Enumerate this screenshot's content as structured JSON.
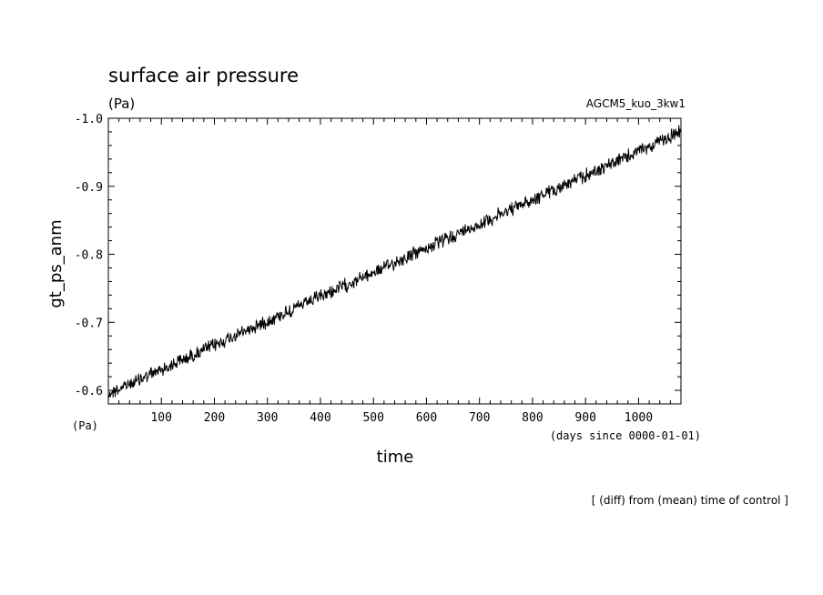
{
  "chart_data": {
    "type": "line",
    "title": "surface air pressure",
    "units_label": "(Pa)",
    "dataset_label": "AGCM5_kuo_3kw1",
    "ylabel": "gt_ps_anm",
    "xlabel": "time",
    "x_units_label": "(days since 0000-01-01)",
    "x_axis_units_corner": "(Pa)",
    "footer_note": "[ (diff) from (mean) time of control ]",
    "xlim": [
      0,
      1080
    ],
    "ylim": [
      -0.58,
      -1.0
    ],
    "y_axis_inverted": true,
    "x_ticks": [
      "100",
      "200",
      "300",
      "400",
      "500",
      "600",
      "700",
      "800",
      "900",
      "1000"
    ],
    "y_ticks": [
      "-1.0",
      "-0.9",
      "-0.8",
      "-0.7",
      "-0.6"
    ],
    "series": [
      {
        "trend_start": [
          0,
          -0.595
        ],
        "trend_end": [
          1080,
          -0.98
        ],
        "noise_amplitude": 0.008
      }
    ]
  }
}
